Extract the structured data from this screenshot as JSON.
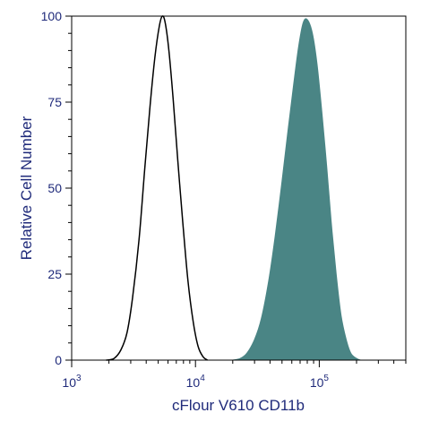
{
  "chart_data": {
    "type": "area",
    "xlabel": "cFlour V610 CD11b",
    "ylabel": "Relative Cell Number",
    "x_scale": "log",
    "xlim": [
      1000,
      500000
    ],
    "ylim": [
      0,
      100
    ],
    "x_ticks": [
      {
        "value": 1000,
        "base": "10",
        "exp": "3"
      },
      {
        "value": 10000,
        "base": "10",
        "exp": "4"
      },
      {
        "value": 100000,
        "base": "10",
        "exp": "5"
      }
    ],
    "y_ticks": [
      0,
      25,
      50,
      75,
      100
    ],
    "grid": false,
    "series": [
      {
        "style": "outline",
        "color": "#000000",
        "x": [
          1900,
          2200,
          2500,
          2800,
          3100,
          3500,
          3900,
          4300,
          4700,
          5100,
          5400,
          5700,
          6100,
          6600,
          7200,
          7900,
          8700,
          9600,
          10500,
          11500,
          12500
        ],
        "y": [
          0,
          0.5,
          3,
          8,
          18,
          35,
          56,
          74,
          88,
          97,
          100,
          98,
          90,
          76,
          58,
          40,
          23,
          11,
          4,
          1,
          0
        ]
      },
      {
        "style": "filled",
        "color": "#4a8585",
        "x": [
          20000,
          23000,
          26000,
          30000,
          34000,
          39000,
          44000,
          50000,
          56000,
          62000,
          68000,
          74000,
          80000,
          88000,
          96000,
          105000,
          115000,
          125000,
          137000,
          150000,
          165000,
          180000,
          200000,
          215000
        ],
        "y": [
          0,
          0.5,
          2,
          6,
          12,
          23,
          36,
          52,
          67,
          80,
          91,
          98,
          99,
          95,
          86,
          72,
          56,
          40,
          25,
          13,
          6,
          2,
          0.5,
          0
        ]
      }
    ]
  }
}
